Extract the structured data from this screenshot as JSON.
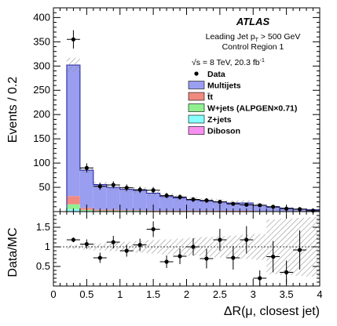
{
  "chart_data": {
    "type": "bar",
    "x_bin_edges": [
      0.2,
      0.4,
      0.6,
      0.8,
      1.0,
      1.2,
      1.4,
      1.6,
      1.8,
      2.0,
      2.2,
      2.4,
      2.6,
      2.8,
      3.0,
      3.2,
      3.4,
      3.6,
      3.8,
      4.0
    ],
    "stack_series": [
      {
        "name": "Multijets",
        "color": "#9a9ef0",
        "values": [
          270,
          78,
          52,
          46,
          43,
          41,
          36,
          29,
          26,
          22,
          20,
          18,
          16,
          16,
          12,
          8,
          6,
          4,
          3
        ]
      },
      {
        "name": "t̄t",
        "color": "#f08a80",
        "values": [
          17,
          4,
          2,
          2,
          1,
          1,
          1,
          1,
          1,
          1,
          1,
          1,
          1,
          1,
          0.5,
          0.5,
          0.5,
          0.5,
          0.5
        ]
      },
      {
        "name": "W+jets (ALPGEN×0.71)",
        "color": "#90f090",
        "values": [
          10,
          2,
          1,
          1,
          1,
          1,
          0.5,
          0.5,
          0.5,
          0.5,
          0.5,
          0.5,
          0.5,
          0.5,
          0.3,
          0.3,
          0.3,
          0.3,
          0.2
        ]
      },
      {
        "name": "Z+jets",
        "color": "#88ffff",
        "values": [
          4,
          1,
          0.5,
          0.5,
          0.5,
          0.5,
          0.3,
          0.3,
          0.3,
          0.3,
          0.3,
          0.3,
          0.2,
          0.2,
          0.2,
          0.1,
          0.1,
          0.1,
          0.1
        ]
      },
      {
        "name": "Diboson",
        "color": "#f890f0",
        "values": [
          1,
          0.5,
          0.3,
          0.3,
          0.3,
          0.3,
          0.2,
          0.2,
          0.2,
          0.2,
          0.1,
          0.1,
          0.1,
          0.1,
          0.1,
          0.1,
          0.1,
          0.1,
          0.1
        ]
      }
    ],
    "data_points": {
      "name": "Data",
      "x": [
        0.3,
        0.5,
        0.7,
        0.9,
        1.1,
        1.3,
        1.5,
        1.7,
        1.9,
        2.1,
        2.3,
        2.5,
        2.7,
        2.9,
        3.1,
        3.3,
        3.5,
        3.7,
        3.9
      ],
      "y": [
        355,
        90,
        52,
        55,
        49,
        45,
        44,
        33,
        30,
        25,
        23,
        20,
        16,
        14,
        13,
        10,
        6,
        5,
        2
      ],
      "yerr": [
        19,
        9.5,
        7.2,
        7.4,
        7,
        6.7,
        6.6,
        5.7,
        5.5,
        5,
        4.8,
        4.5,
        4,
        3.7,
        3.6,
        3.2,
        2.4,
        2.2,
        1.4
      ]
    },
    "ratio": {
      "x": [
        0.3,
        0.5,
        0.7,
        0.9,
        1.1,
        1.3,
        1.5,
        1.7,
        1.9,
        2.1,
        2.3,
        2.5,
        2.7,
        2.9,
        3.1,
        3.3,
        3.5,
        3.7
      ],
      "y": [
        1.18,
        1.07,
        0.72,
        1.12,
        0.9,
        1.05,
        1.45,
        0.62,
        0.76,
        1.0,
        0.7,
        1.18,
        0.72,
        1.18,
        0.2,
        0.75,
        0.35,
        0.92
      ],
      "yerr": [
        0.06,
        0.12,
        0.13,
        0.16,
        0.15,
        0.16,
        0.2,
        0.16,
        0.2,
        0.22,
        0.25,
        0.28,
        0.3,
        0.35,
        0.2,
        0.4,
        0.3,
        0.5
      ]
    },
    "main_panel": {
      "ylabel": "Events / 0.2",
      "ylim": [
        0,
        420
      ],
      "yticks": [
        50,
        100,
        150,
        200,
        250,
        300,
        350,
        400
      ]
    },
    "ratio_panel": {
      "ylabel": "Data/MC",
      "ylim": [
        0,
        1.9
      ],
      "yticks": [
        0.5,
        1,
        1.5
      ]
    },
    "x_axis": {
      "label": "ΔR(μ, closest jet)",
      "xlim": [
        0,
        4
      ],
      "xticks": [
        0,
        0.5,
        1,
        1.5,
        2,
        2.5,
        3,
        3.5,
        4
      ]
    },
    "annotations": {
      "experiment": "ATLAS",
      "line1_main": "Leading Jet p",
      "line1_sub": "T",
      "line1_tail": " > 500 GeV",
      "line2": "Control Region 1",
      "energy": "√s = 8 TeV, 20.3 fb",
      "energy_sup": "-1"
    },
    "legend": {
      "placement": "top-right",
      "entries": [
        {
          "label": "Data",
          "kind": "marker"
        },
        {
          "label": "Multijets",
          "kind": "fill",
          "color": "#9a9ef0"
        },
        {
          "label": "t̄t",
          "kind": "fill",
          "color": "#f08a80"
        },
        {
          "label": "W+jets (ALPGEN×0.71)",
          "kind": "fill",
          "color": "#90f090"
        },
        {
          "label": "Z+jets",
          "kind": "fill",
          "color": "#88ffff"
        },
        {
          "label": "Diboson",
          "kind": "fill",
          "color": "#f890f0"
        }
      ]
    }
  }
}
